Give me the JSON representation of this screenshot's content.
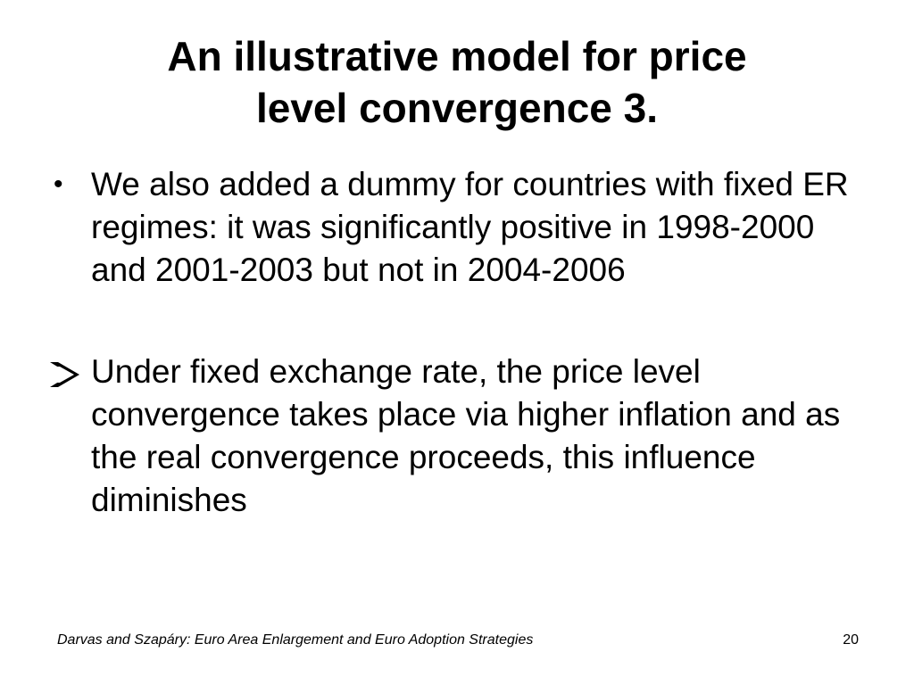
{
  "slide": {
    "title_line1": "An illustrative model for price",
    "title_line2": "level convergence 3.",
    "bullets": [
      {
        "marker": "•",
        "text": "We also added a dummy for countries with fixed ER regimes: it was significantly positive in 1998-2000 and 2001-2003 but not in 2004-2006"
      },
      {
        "marker": "arrow-bullet-icon",
        "text": "Under fixed exchange rate, the price level convergence takes place via higher inflation and as the real convergence proceeds, this influence diminishes"
      }
    ],
    "footer": "Darvas and Szapáry: Euro Area Enlargement and Euro Adoption Strategies",
    "page_number": "20"
  }
}
